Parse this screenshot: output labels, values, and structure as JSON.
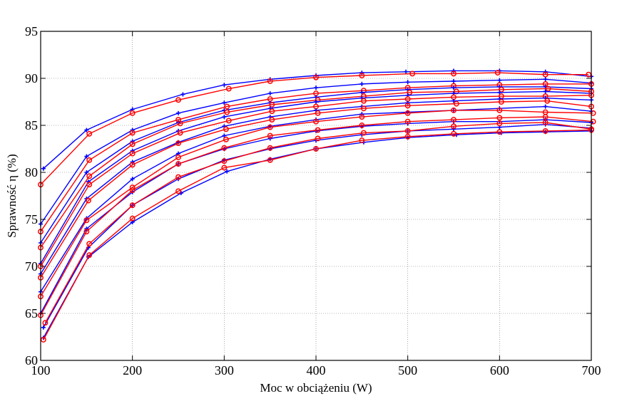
{
  "chart_data": {
    "type": "line",
    "xlabel": "Moc w obciążeniu (W)",
    "ylabel": "Sprawność η (%)",
    "xlim": [
      100,
      700
    ],
    "ylim": [
      60,
      95
    ],
    "xticks": [
      100,
      200,
      300,
      400,
      500,
      600,
      700
    ],
    "yticks": [
      60,
      65,
      70,
      75,
      80,
      85,
      90,
      95
    ],
    "grid": true,
    "colors": {
      "blue": "#0000ff",
      "red": "#ff0000"
    },
    "series": [
      {
        "color": "blue",
        "marker": "plus",
        "points": [
          [
            103,
            80.4
          ],
          [
            150,
            84.5
          ],
          [
            200,
            86.7
          ],
          [
            255,
            88.3
          ],
          [
            300,
            89.3
          ],
          [
            350,
            89.9
          ],
          [
            400,
            90.3
          ],
          [
            450,
            90.6
          ],
          [
            498,
            90.7
          ],
          [
            550,
            90.8
          ],
          [
            600,
            90.8
          ],
          [
            650,
            90.7
          ],
          [
            700,
            90.2
          ]
        ]
      },
      {
        "color": "red",
        "marker": "circle",
        "points": [
          [
            100,
            78.7
          ],
          [
            153,
            84.1
          ],
          [
            200,
            86.3
          ],
          [
            250,
            87.7
          ],
          [
            305,
            88.9
          ],
          [
            350,
            89.7
          ],
          [
            400,
            90.1
          ],
          [
            450,
            90.3
          ],
          [
            505,
            90.5
          ],
          [
            550,
            90.5
          ],
          [
            598,
            90.6
          ],
          [
            650,
            90.4
          ],
          [
            697,
            90.4
          ]
        ]
      },
      {
        "color": "blue",
        "marker": "plus",
        "points": [
          [
            100,
            74.5
          ],
          [
            150,
            81.7
          ],
          [
            200,
            84.5
          ],
          [
            250,
            86.3
          ],
          [
            300,
            87.4
          ],
          [
            350,
            88.4
          ],
          [
            400,
            89.0
          ],
          [
            450,
            89.4
          ],
          [
            500,
            89.6
          ],
          [
            550,
            89.7
          ],
          [
            600,
            89.8
          ],
          [
            650,
            89.9
          ],
          [
            700,
            89.5
          ]
        ]
      },
      {
        "color": "red",
        "marker": "circle",
        "points": [
          [
            100,
            73.7
          ],
          [
            153,
            81.3
          ],
          [
            200,
            84.2
          ],
          [
            250,
            85.6
          ],
          [
            303,
            87.0
          ],
          [
            350,
            87.8
          ],
          [
            400,
            88.4
          ],
          [
            452,
            88.7
          ],
          [
            500,
            89.0
          ],
          [
            550,
            89.2
          ],
          [
            600,
            89.3
          ],
          [
            650,
            89.4
          ],
          [
            700,
            89.4
          ]
        ]
      },
      {
        "color": "blue",
        "marker": "plus",
        "points": [
          [
            100,
            72.5
          ],
          [
            150,
            80.0
          ],
          [
            200,
            83.3
          ],
          [
            250,
            85.3
          ],
          [
            300,
            86.6
          ],
          [
            350,
            87.4
          ],
          [
            400,
            88.0
          ],
          [
            450,
            88.5
          ],
          [
            500,
            88.8
          ],
          [
            550,
            89.0
          ],
          [
            600,
            89.1
          ],
          [
            650,
            89.1
          ],
          [
            700,
            88.9
          ]
        ]
      },
      {
        "color": "red",
        "marker": "circle",
        "points": [
          [
            100,
            72.0
          ],
          [
            153,
            79.6
          ],
          [
            200,
            83.0
          ],
          [
            252,
            85.2
          ],
          [
            303,
            86.4
          ],
          [
            352,
            87.2
          ],
          [
            402,
            87.7
          ],
          [
            452,
            88.1
          ],
          [
            502,
            88.5
          ],
          [
            553,
            88.6
          ],
          [
            602,
            88.8
          ],
          [
            653,
            88.9
          ],
          [
            700,
            88.6
          ]
        ]
      },
      {
        "color": "blue",
        "marker": "plus",
        "points": [
          [
            100,
            70.3
          ],
          [
            152,
            79.0
          ],
          [
            200,
            82.3
          ],
          [
            250,
            84.4
          ],
          [
            300,
            85.9
          ],
          [
            350,
            86.8
          ],
          [
            400,
            87.5
          ],
          [
            450,
            87.9
          ],
          [
            500,
            88.2
          ],
          [
            550,
            88.4
          ],
          [
            600,
            88.5
          ],
          [
            650,
            88.6
          ],
          [
            700,
            88.4
          ]
        ]
      },
      {
        "color": "red",
        "marker": "circle",
        "points": [
          [
            100,
            70.0
          ],
          [
            153,
            78.7
          ],
          [
            200,
            82.0
          ],
          [
            252,
            84.2
          ],
          [
            305,
            85.5
          ],
          [
            352,
            86.5
          ],
          [
            400,
            87.0
          ],
          [
            452,
            87.6
          ],
          [
            500,
            87.8
          ],
          [
            550,
            88.0
          ],
          [
            602,
            88.1
          ],
          [
            650,
            88.1
          ],
          [
            700,
            88.2
          ]
        ]
      },
      {
        "color": "blue",
        "marker": "plus",
        "points": [
          [
            100,
            69.2
          ],
          [
            150,
            77.2
          ],
          [
            200,
            81.1
          ],
          [
            250,
            83.2
          ],
          [
            300,
            84.9
          ],
          [
            350,
            85.9
          ],
          [
            400,
            86.6
          ],
          [
            450,
            87.0
          ],
          [
            500,
            87.4
          ],
          [
            550,
            87.6
          ],
          [
            600,
            87.8
          ],
          [
            650,
            87.9
          ],
          [
            700,
            87.7
          ]
        ]
      },
      {
        "color": "red",
        "marker": "circle",
        "points": [
          [
            100,
            68.8
          ],
          [
            152,
            77.0
          ],
          [
            200,
            80.8
          ],
          [
            250,
            83.1
          ],
          [
            302,
            84.6
          ],
          [
            352,
            85.6
          ],
          [
            402,
            86.3
          ],
          [
            452,
            86.8
          ],
          [
            500,
            87.1
          ],
          [
            553,
            87.3
          ],
          [
            602,
            87.5
          ],
          [
            652,
            87.6
          ],
          [
            700,
            87.0
          ]
        ]
      },
      {
        "color": "blue",
        "marker": "plus",
        "points": [
          [
            100,
            67.3
          ],
          [
            150,
            75.1
          ],
          [
            200,
            79.3
          ],
          [
            250,
            82.0
          ],
          [
            300,
            83.9
          ],
          [
            350,
            84.9
          ],
          [
            400,
            85.6
          ],
          [
            450,
            86.2
          ],
          [
            500,
            86.4
          ],
          [
            550,
            86.6
          ],
          [
            600,
            86.8
          ],
          [
            650,
            87.0
          ],
          [
            700,
            86.5
          ]
        ]
      },
      {
        "color": "red",
        "marker": "circle",
        "points": [
          [
            100,
            66.8
          ],
          [
            150,
            74.9
          ],
          [
            200,
            78.4
          ],
          [
            250,
            81.6
          ],
          [
            302,
            83.5
          ],
          [
            350,
            84.8
          ],
          [
            400,
            85.4
          ],
          [
            450,
            85.9
          ],
          [
            500,
            86.3
          ],
          [
            550,
            86.6
          ],
          [
            600,
            86.6
          ],
          [
            650,
            86.4
          ],
          [
            702,
            86.3
          ]
        ]
      },
      {
        "color": "blue",
        "marker": "plus",
        "points": [
          [
            100,
            65.0
          ],
          [
            150,
            74.0
          ],
          [
            200,
            77.9
          ],
          [
            250,
            80.9
          ],
          [
            300,
            82.5
          ],
          [
            350,
            83.6
          ],
          [
            400,
            84.4
          ],
          [
            450,
            84.9
          ],
          [
            500,
            85.2
          ],
          [
            550,
            85.4
          ],
          [
            600,
            85.4
          ],
          [
            650,
            85.6
          ],
          [
            700,
            85.3
          ]
        ]
      },
      {
        "color": "red",
        "marker": "circle",
        "points": [
          [
            100,
            64.8
          ],
          [
            150,
            73.7
          ],
          [
            200,
            78.1
          ],
          [
            250,
            80.9
          ],
          [
            300,
            82.6
          ],
          [
            350,
            83.9
          ],
          [
            402,
            84.5
          ],
          [
            450,
            85.0
          ],
          [
            500,
            85.4
          ],
          [
            550,
            85.6
          ],
          [
            600,
            85.8
          ],
          [
            650,
            85.9
          ],
          [
            702,
            85.4
          ]
        ]
      },
      {
        "color": "blue",
        "marker": "plus",
        "points": [
          [
            103,
            63.5
          ],
          [
            152,
            72.0
          ],
          [
            200,
            76.5
          ],
          [
            250,
            79.3
          ],
          [
            300,
            81.3
          ],
          [
            350,
            82.5
          ],
          [
            400,
            83.4
          ],
          [
            450,
            84.0
          ],
          [
            500,
            84.4
          ],
          [
            550,
            84.6
          ],
          [
            600,
            84.8
          ],
          [
            650,
            85.1
          ],
          [
            700,
            84.7
          ]
        ]
      },
      {
        "color": "red",
        "marker": "circle",
        "points": [
          [
            105,
            64.0
          ],
          [
            153,
            72.4
          ],
          [
            200,
            76.5
          ],
          [
            250,
            79.5
          ],
          [
            300,
            81.2
          ],
          [
            350,
            82.6
          ],
          [
            402,
            83.6
          ],
          [
            452,
            84.2
          ],
          [
            500,
            84.4
          ],
          [
            550,
            84.9
          ],
          [
            600,
            85.2
          ],
          [
            650,
            85.3
          ],
          [
            700,
            84.6
          ]
        ]
      },
      {
        "color": "blue",
        "marker": "plus",
        "points": [
          [
            103,
            62.4
          ],
          [
            152,
            71.0
          ],
          [
            200,
            74.7
          ],
          [
            253,
            77.8
          ],
          [
            303,
            80.1
          ],
          [
            350,
            81.4
          ],
          [
            400,
            82.5
          ],
          [
            452,
            83.2
          ],
          [
            500,
            83.7
          ],
          [
            553,
            84.0
          ],
          [
            602,
            84.2
          ],
          [
            650,
            84.3
          ],
          [
            700,
            84.4
          ]
        ]
      },
      {
        "color": "red",
        "marker": "circle",
        "points": [
          [
            103,
            62.2
          ],
          [
            153,
            71.2
          ],
          [
            200,
            75.1
          ],
          [
            250,
            78.0
          ],
          [
            300,
            80.5
          ],
          [
            350,
            81.3
          ],
          [
            400,
            82.5
          ],
          [
            450,
            83.4
          ],
          [
            500,
            83.8
          ],
          [
            550,
            84.1
          ],
          [
            600,
            84.3
          ],
          [
            650,
            84.4
          ],
          [
            700,
            84.5
          ]
        ]
      }
    ]
  }
}
